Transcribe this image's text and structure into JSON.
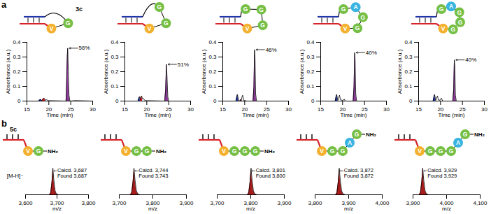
{
  "residue_colors": {
    "G": "#76bf45",
    "V": "#f4b12f",
    "A": "#39b4e0"
  },
  "chart_data": [
    {
      "panel": "a",
      "type": "line",
      "schematic": {
        "label": "3c",
        "residues": [
          "V",
          "G"
        ]
      },
      "xlabel": "Time (min)",
      "ylabel": "Absorbance (a.u.)",
      "xlim": [
        15,
        30
      ],
      "xticks": [
        15,
        20,
        25,
        30
      ],
      "ylim": [
        0,
        0.4
      ],
      "yticks": [
        0,
        0.1,
        0.2,
        0.3,
        0.4
      ],
      "annotation": "56%",
      "series": [
        {
          "type": "area",
          "color": "#2336a8",
          "x": [
            17.7,
            17.9,
            18.1,
            18.4
          ],
          "values": [
            0,
            0.008,
            0.012,
            0.003
          ]
        },
        {
          "type": "area",
          "color": "#d7262b",
          "x": [
            18.4,
            18.7,
            18.9,
            19.2
          ],
          "values": [
            0.003,
            0.015,
            0.02,
            0.006
          ]
        },
        {
          "type": "area",
          "color": "#8e3a9b",
          "x": [
            23.9,
            24.0,
            24.2,
            24.3,
            24.45,
            24.6,
            24.8
          ],
          "values": [
            0,
            0.05,
            0.3,
            0.36,
            0.2,
            0.04,
            0
          ]
        },
        {
          "type": "line",
          "color": "#000000",
          "x": [
            15,
            17.7,
            17.9,
            18.1,
            18.4,
            18.7,
            18.9,
            19.2,
            19.5,
            19.8,
            21,
            23.9,
            24.0,
            24.2,
            24.3,
            24.45,
            24.6,
            24.8,
            26,
            30
          ],
          "values": [
            0,
            0,
            0.008,
            0.012,
            0.003,
            0.015,
            0.02,
            0.006,
            0.01,
            0.003,
            0.002,
            0,
            0.05,
            0.3,
            0.36,
            0.2,
            0.04,
            0,
            0.003,
            0
          ]
        }
      ]
    },
    {
      "panel": "a",
      "type": "line",
      "schematic": {
        "residues": [
          "V",
          "G",
          "G"
        ]
      },
      "xlabel": "Time (min)",
      "ylabel": "Absorbance (a.u.)",
      "xlim": [
        15,
        30
      ],
      "xticks": [
        15,
        20,
        25,
        30
      ],
      "ylim": [
        0,
        0.4
      ],
      "yticks": [
        0,
        0.1,
        0.2,
        0.3,
        0.4
      ],
      "annotation": "51%",
      "series": [
        {
          "type": "area",
          "color": "#2336a8",
          "x": [
            18.0,
            18.2,
            18.35,
            18.5
          ],
          "values": [
            0,
            0.02,
            0.03,
            0.01
          ]
        },
        {
          "type": "area",
          "color": "#d7262b",
          "x": [
            18.5,
            18.7,
            18.85,
            19.0
          ],
          "values": [
            0.01,
            0.03,
            0.035,
            0.012
          ]
        },
        {
          "type": "area",
          "color": "#8e3a9b",
          "x": [
            24.1,
            24.3,
            24.5,
            24.6,
            24.8,
            25.0
          ],
          "values": [
            0,
            0.08,
            0.25,
            0.18,
            0.03,
            0
          ]
        },
        {
          "type": "line",
          "color": "#000000",
          "x": [
            15,
            18.0,
            18.2,
            18.35,
            18.5,
            18.7,
            18.85,
            19.0,
            19.2,
            19.6,
            21,
            24.1,
            24.3,
            24.5,
            24.6,
            24.8,
            25.0,
            30
          ],
          "values": [
            0,
            0,
            0.02,
            0.03,
            0.01,
            0.03,
            0.035,
            0.012,
            0.018,
            0.003,
            0.002,
            0,
            0.08,
            0.25,
            0.18,
            0.03,
            0,
            0
          ]
        }
      ]
    },
    {
      "panel": "a",
      "type": "line",
      "schematic": {
        "residues": [
          "V",
          "G",
          "G",
          "G"
        ]
      },
      "xlabel": "Time (min)",
      "ylabel": "Absorbance (a.u.)",
      "xlim": [
        15,
        30
      ],
      "xticks": [
        15,
        20,
        25,
        30
      ],
      "ylim": [
        0,
        0.4
      ],
      "yticks": [
        0,
        0.1,
        0.2,
        0.3,
        0.4
      ],
      "annotation": "46%",
      "series": [
        {
          "type": "area",
          "color": "#2336a8",
          "x": [
            18.0,
            18.2,
            18.35,
            18.6
          ],
          "values": [
            0,
            0.03,
            0.045,
            0.005
          ]
        },
        {
          "type": "area",
          "color": "#d7262b",
          "x": [
            18.9,
            19.05,
            19.2
          ],
          "values": [
            0,
            0.012,
            0
          ]
        },
        {
          "type": "area",
          "color": "#8e3a9b",
          "x": [
            21.9,
            22.1,
            22.25,
            22.35,
            22.5,
            22.7
          ],
          "values": [
            0,
            0.1,
            0.35,
            0.3,
            0.05,
            0
          ]
        },
        {
          "type": "line",
          "color": "#000000",
          "x": [
            15,
            18.0,
            18.2,
            18.35,
            18.6,
            18.9,
            19.05,
            19.2,
            19.4,
            19.55,
            19.8,
            20.5,
            21.9,
            22.1,
            22.25,
            22.35,
            22.5,
            22.7,
            30
          ],
          "values": [
            0,
            0,
            0.03,
            0.045,
            0.005,
            0,
            0.012,
            0,
            0.03,
            0.04,
            0.005,
            0,
            0,
            0.1,
            0.35,
            0.3,
            0.05,
            0,
            0
          ]
        }
      ]
    },
    {
      "panel": "a",
      "type": "line",
      "schematic": {
        "residues": [
          "V",
          "G",
          "G",
          "A",
          "G"
        ]
      },
      "xlabel": "Time (min)",
      "ylabel": "Absorbance (a.u.)",
      "xlim": [
        15,
        30
      ],
      "xticks": [
        15,
        20,
        25,
        30
      ],
      "ylim": [
        0,
        0.4
      ],
      "yticks": [
        0,
        0.1,
        0.2,
        0.3,
        0.4
      ],
      "annotation": "40%",
      "series": [
        {
          "type": "area",
          "color": "#2336a8",
          "x": [
            18.3,
            18.5,
            18.65,
            18.9
          ],
          "values": [
            0,
            0.03,
            0.045,
            0.005
          ]
        },
        {
          "type": "area",
          "color": "#8e3a9b",
          "x": [
            22.4,
            22.6,
            22.75,
            22.85,
            23.0,
            23.2
          ],
          "values": [
            0,
            0.1,
            0.33,
            0.28,
            0.05,
            0
          ]
        },
        {
          "type": "line",
          "color": "#000000",
          "x": [
            15,
            18.3,
            18.5,
            18.65,
            18.9,
            19.1,
            19.3,
            19.5,
            20,
            20.4,
            20.6,
            22.4,
            22.6,
            22.75,
            22.85,
            23.0,
            23.2,
            30
          ],
          "values": [
            0,
            0,
            0.03,
            0.045,
            0.005,
            0.02,
            0.04,
            0.01,
            0.004,
            0.012,
            0,
            0,
            0.1,
            0.33,
            0.28,
            0.05,
            0,
            0
          ]
        }
      ]
    },
    {
      "panel": "a",
      "type": "line",
      "schematic": {
        "residues": [
          "V",
          "G",
          "G",
          "G",
          "A",
          "G"
        ]
      },
      "xlabel": "Time (min)",
      "ylabel": "Absorbance (a.u.)",
      "xlim": [
        15,
        30
      ],
      "xticks": [
        15,
        20,
        25,
        30
      ],
      "ylim": [
        0,
        0.4
      ],
      "yticks": [
        0,
        0.1,
        0.2,
        0.3,
        0.4
      ],
      "annotation": "40%",
      "series": [
        {
          "type": "area",
          "color": "#2336a8",
          "x": [
            18.3,
            18.5,
            18.65,
            18.9
          ],
          "values": [
            0,
            0.03,
            0.045,
            0.005
          ]
        },
        {
          "type": "area",
          "color": "#8e3a9b",
          "x": [
            22.8,
            23.0,
            23.15,
            23.25,
            23.4,
            23.6
          ],
          "values": [
            0,
            0.08,
            0.28,
            0.24,
            0.04,
            0
          ]
        },
        {
          "type": "line",
          "color": "#000000",
          "x": [
            15,
            18.3,
            18.5,
            18.65,
            18.9,
            19.1,
            19.3,
            19.5,
            19.9,
            20.2,
            20.5,
            22.8,
            23.0,
            23.15,
            23.25,
            23.4,
            23.6,
            30
          ],
          "values": [
            0,
            0,
            0.03,
            0.045,
            0.005,
            0.02,
            0.035,
            0.008,
            0.006,
            0.02,
            0,
            0,
            0.08,
            0.28,
            0.24,
            0.04,
            0,
            0
          ]
        }
      ]
    },
    {
      "panel": "b",
      "type": "line",
      "tick_labels": "x",
      "schematic": {
        "label": "5c",
        "residues": [
          "V",
          "G"
        ],
        "terminus": "NH₂"
      },
      "xlabel": "m/z",
      "ylabel": "[M-H]⁻",
      "xlim": [
        3600,
        3800
      ],
      "xticks": [
        {
          "value": 3600,
          "label": "3,600"
        },
        {
          "value": 3700,
          "label": "3,700"
        },
        {
          "value": 3800,
          "label": "3,800"
        }
      ],
      "ylim": [
        0,
        100
      ],
      "annotation": [
        "Calcd. 3,687",
        "Found 3,687"
      ],
      "series": [
        {
          "type": "area",
          "color": "#a81c1c",
          "x": [
            3600,
            3676,
            3680,
            3684,
            3687,
            3690,
            3694,
            3698,
            3705,
            3800
          ],
          "values": [
            0,
            0,
            8,
            50,
            100,
            55,
            15,
            3,
            0,
            0
          ]
        },
        {
          "type": "line",
          "color": "#000000",
          "x": [
            3600,
            3676,
            3680,
            3684,
            3687,
            3690,
            3694,
            3698,
            3705,
            3800
          ],
          "values": [
            0,
            0,
            8,
            50,
            100,
            55,
            15,
            3,
            0,
            0
          ]
        }
      ]
    },
    {
      "panel": "b",
      "type": "line",
      "tick_labels": "x",
      "schematic": {
        "residues": [
          "V",
          "G",
          "G"
        ],
        "terminus": "NH₂"
      },
      "xlabel": "m/z",
      "xlim": [
        3700,
        3900
      ],
      "xticks": [
        {
          "value": 3700,
          "label": "3,700"
        },
        {
          "value": 3800,
          "label": "3,800"
        },
        {
          "value": 3900,
          "label": "3,900"
        }
      ],
      "ylim": [
        0,
        100
      ],
      "annotation": [
        "Calcd. 3,744",
        "Found 3,743"
      ],
      "series": [
        {
          "type": "area",
          "color": "#a81c1c",
          "x": [
            3700,
            3733,
            3737,
            3741,
            3744,
            3747,
            3751,
            3755,
            3762,
            3900
          ],
          "values": [
            0,
            0,
            8,
            50,
            100,
            55,
            15,
            3,
            0,
            0
          ]
        },
        {
          "type": "line",
          "color": "#000000",
          "x": [
            3700,
            3733,
            3737,
            3741,
            3744,
            3747,
            3751,
            3755,
            3762,
            3900
          ],
          "values": [
            0,
            0,
            8,
            50,
            100,
            55,
            15,
            3,
            0,
            0
          ]
        }
      ]
    },
    {
      "panel": "b",
      "type": "line",
      "tick_labels": "x",
      "schematic": {
        "residues": [
          "V",
          "G",
          "G",
          "G"
        ],
        "terminus": "NH₂"
      },
      "xlabel": "m/z",
      "xlim": [
        3700,
        3900
      ],
      "xticks": [
        {
          "value": 3700,
          "label": "3,700"
        },
        {
          "value": 3800,
          "label": "3,800"
        },
        {
          "value": 3900,
          "label": "3,900"
        }
      ],
      "ylim": [
        0,
        100
      ],
      "annotation": [
        "Calcd. 3,801",
        "Found 3,800"
      ],
      "series": [
        {
          "type": "area",
          "color": "#a81c1c",
          "x": [
            3700,
            3790,
            3794,
            3798,
            3801,
            3804,
            3808,
            3812,
            3819,
            3900
          ],
          "values": [
            0,
            0,
            8,
            50,
            100,
            55,
            15,
            3,
            0,
            0
          ]
        },
        {
          "type": "line",
          "color": "#000000",
          "x": [
            3700,
            3790,
            3794,
            3798,
            3801,
            3804,
            3808,
            3812,
            3819,
            3900
          ],
          "values": [
            0,
            0,
            8,
            50,
            100,
            55,
            15,
            3,
            0,
            0
          ]
        }
      ]
    },
    {
      "panel": "b",
      "type": "line",
      "tick_labels": "x",
      "schematic": {
        "residues": [
          "V",
          "G",
          "G",
          "A",
          "G"
        ],
        "terminus": "NH₂"
      },
      "xlabel": "m/z",
      "xlim": [
        3800,
        4000
      ],
      "xticks": [
        {
          "value": 3800,
          "label": "3,800"
        },
        {
          "value": 3900,
          "label": "3,900"
        },
        {
          "value": 4000,
          "label": "4,000"
        }
      ],
      "ylim": [
        0,
        100
      ],
      "annotation": [
        "Calcd. 3,872",
        "Found 3,872"
      ],
      "series": [
        {
          "type": "area",
          "color": "#a81c1c",
          "x": [
            3800,
            3861,
            3865,
            3869,
            3872,
            3875,
            3879,
            3883,
            3890,
            4000
          ],
          "values": [
            0,
            0,
            8,
            50,
            100,
            55,
            15,
            3,
            0,
            0
          ]
        },
        {
          "type": "line",
          "color": "#000000",
          "x": [
            3800,
            3861,
            3865,
            3869,
            3872,
            3875,
            3879,
            3883,
            3890,
            4000
          ],
          "values": [
            0,
            0,
            8,
            50,
            100,
            55,
            15,
            3,
            0,
            0
          ]
        }
      ]
    },
    {
      "panel": "b",
      "type": "line",
      "tick_labels": "x",
      "schematic": {
        "residues": [
          "V",
          "G",
          "G",
          "G",
          "A",
          "G"
        ],
        "terminus": "NH₂"
      },
      "xlabel": "m/z",
      "xlim": [
        3900,
        4100
      ],
      "xticks": [
        {
          "value": 3900,
          "label": "3,900"
        },
        {
          "value": 4000,
          "label": "4,000"
        },
        {
          "value": 4100,
          "label": "4,100"
        }
      ],
      "ylim": [
        0,
        100
      ],
      "annotation": [
        "Calcd. 3,929",
        "Found 3,929"
      ],
      "series": [
        {
          "type": "area",
          "color": "#a81c1c",
          "x": [
            3900,
            3918,
            3922,
            3926,
            3929,
            3932,
            3936,
            3940,
            3947,
            4100
          ],
          "values": [
            0,
            0,
            8,
            50,
            100,
            55,
            15,
            3,
            0,
            0
          ]
        },
        {
          "type": "line",
          "color": "#000000",
          "x": [
            3900,
            3918,
            3922,
            3926,
            3929,
            3932,
            3936,
            3940,
            3947,
            4100
          ],
          "values": [
            0,
            0,
            8,
            50,
            100,
            55,
            15,
            3,
            0,
            0
          ]
        }
      ]
    }
  ]
}
